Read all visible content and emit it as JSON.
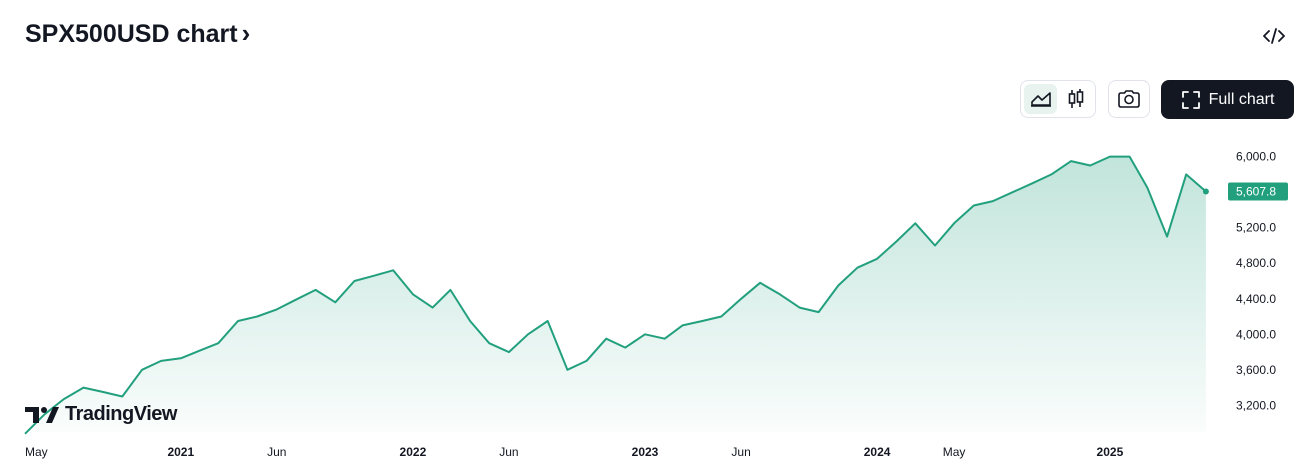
{
  "header": {
    "title": "SPX500USD chart",
    "title_chevron": "›",
    "embed_icon": "code-icon"
  },
  "toolbar": {
    "chart_style_options": [
      {
        "icon": "area-chart-icon",
        "active": true
      },
      {
        "icon": "candlestick-icon",
        "active": false
      }
    ],
    "snapshot_icon": "camera-icon",
    "full_chart_label": "Full chart",
    "full_chart_icon": "fullscreen-icon"
  },
  "branding": {
    "logo_text": "TradingView"
  },
  "colors": {
    "line": "#22a07e",
    "fill_top": "#22a07e",
    "price_badge": "#22a07e",
    "axis_text": "#131722"
  },
  "chart_data": {
    "type": "area",
    "title": "SPX500USD",
    "xlabel": "",
    "ylabel": "",
    "ylim": [
      2900,
      6300
    ],
    "y_ticks": [
      "6,000.0",
      "5,200.0",
      "4,800.0",
      "4,400.0",
      "4,000.0",
      "3,600.0",
      "3,200.0"
    ],
    "y_tick_values": [
      6000,
      5200,
      4800,
      4400,
      4000,
      3600,
      3200
    ],
    "x_tick_labels": [
      {
        "label": "May",
        "date": "2020-05-01",
        "bold": false
      },
      {
        "label": "2021",
        "date": "2021-01-01",
        "bold": true
      },
      {
        "label": "Jun",
        "date": "2021-06-01",
        "bold": false
      },
      {
        "label": "2022",
        "date": "2022-01-01",
        "bold": true
      },
      {
        "label": "Jun",
        "date": "2022-06-01",
        "bold": false
      },
      {
        "label": "2023",
        "date": "2023-01-01",
        "bold": true
      },
      {
        "label": "Jun",
        "date": "2023-06-01",
        "bold": false
      },
      {
        "label": "2024",
        "date": "2024-01-01",
        "bold": true
      },
      {
        "label": "May",
        "date": "2024-05-01",
        "bold": false
      },
      {
        "label": "2025",
        "date": "2025-01-01",
        "bold": true
      }
    ],
    "last_price": "5,607.8",
    "last_price_value": 5607.8,
    "series": [
      {
        "x": [
          "2020-05-01",
          "2020-06-01",
          "2020-07-01",
          "2020-08-01",
          "2020-09-01",
          "2020-10-01",
          "2020-11-01",
          "2020-12-01",
          "2021-01-01",
          "2021-02-01",
          "2021-03-01",
          "2021-04-01",
          "2021-05-01",
          "2021-06-01",
          "2021-07-01",
          "2021-08-01",
          "2021-09-01",
          "2021-10-01",
          "2021-11-01",
          "2021-12-01",
          "2022-01-01",
          "2022-02-01",
          "2022-03-01",
          "2022-04-01",
          "2022-05-01",
          "2022-06-01",
          "2022-07-01",
          "2022-08-01",
          "2022-09-01",
          "2022-10-01",
          "2022-11-01",
          "2022-12-01",
          "2023-01-01",
          "2023-02-01",
          "2023-03-01",
          "2023-04-01",
          "2023-05-01",
          "2023-06-01",
          "2023-07-01",
          "2023-08-01",
          "2023-09-01",
          "2023-10-01",
          "2023-11-01",
          "2023-12-01",
          "2024-01-01",
          "2024-02-01",
          "2024-03-01",
          "2024-04-01",
          "2024-05-01",
          "2024-06-01",
          "2024-07-01",
          "2024-08-01",
          "2024-09-01",
          "2024-10-01",
          "2024-11-01",
          "2024-12-01",
          "2025-01-01",
          "2025-02-01",
          "2025-03-01",
          "2025-04-01",
          "2025-05-01",
          "2025-06-01"
        ],
        "values": [
          2880,
          3100,
          3270,
          3400,
          3350,
          3300,
          3600,
          3700,
          3730,
          3820,
          3900,
          4150,
          4200,
          4280,
          4390,
          4500,
          4360,
          4600,
          4660,
          4720,
          4450,
          4300,
          4500,
          4150,
          3900,
          3800,
          4000,
          4150,
          3600,
          3700,
          3950,
          3850,
          4000,
          3950,
          4100,
          4150,
          4200,
          4400,
          4580,
          4450,
          4300,
          4250,
          4550,
          4750,
          4850,
          5050,
          5250,
          5000,
          5250,
          5450,
          5500,
          5600,
          5700,
          5800,
          5950,
          5900,
          6000,
          6000,
          5650,
          5100,
          5800,
          5607.8
        ]
      }
    ]
  }
}
